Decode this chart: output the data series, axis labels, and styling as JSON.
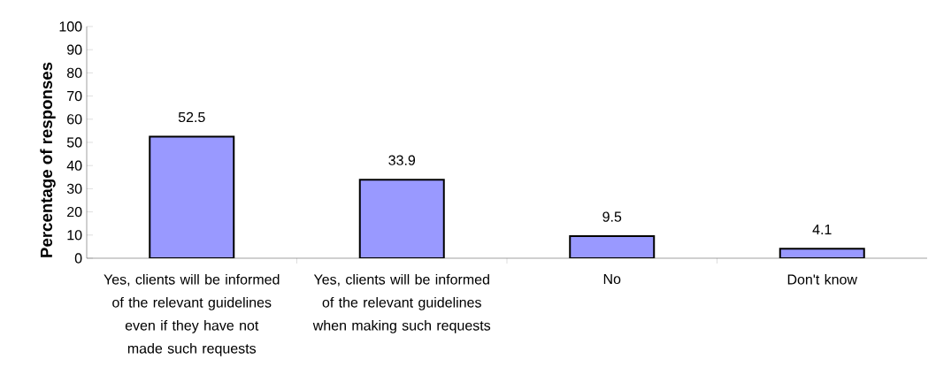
{
  "chart_data": {
    "type": "bar",
    "ylabel": "Percentage of responses",
    "categories": [
      "Yes, clients will be informed of the relevant guidelines even if they have not made such requests",
      "Yes, clients will be informed of the relevant guidelines when making such requests",
      "No",
      "Don't know"
    ],
    "values": [
      52.5,
      33.9,
      9.5,
      4.1
    ],
    "color": "#9999ff",
    "data_labels": true,
    "ylim": [
      0,
      100
    ],
    "yticks": [
      0,
      10,
      20,
      30,
      40,
      50,
      60,
      70,
      80,
      90,
      100
    ],
    "grid": false
  }
}
